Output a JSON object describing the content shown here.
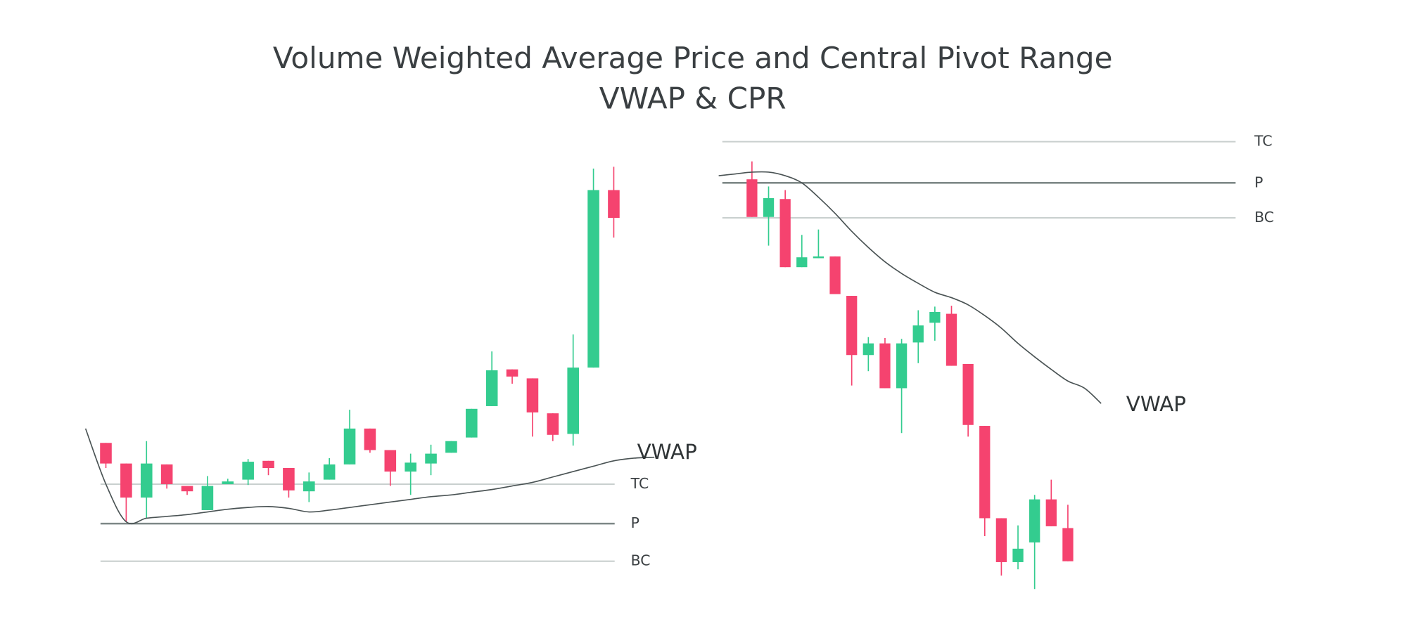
{
  "title": {
    "line1": "Volume Weighted Average Price and Central Pivot Range",
    "line2": "VWAP & CPR"
  },
  "colors": {
    "bullish": "#33cc8f",
    "bearish": "#f5436f",
    "pivot_line": "#7d8786",
    "range_line": "#c9cfce",
    "vwap_line": "#4a5354",
    "text": "#3a3f42"
  },
  "chart_data": [
    {
      "type": "candlestick",
      "title": "",
      "axes_visible": false,
      "grid": false,
      "levels": [
        {
          "label": "TC",
          "value": 160
        },
        {
          "label": "P",
          "value": 116
        },
        {
          "label": "BC",
          "value": 74
        }
      ],
      "vwap": {
        "label": "VWAP",
        "start_index": -1,
        "values": [
          222,
          160,
          118,
          122,
          124,
          126,
          129,
          132,
          134,
          135,
          133,
          129,
          131,
          134,
          137,
          140,
          143,
          146,
          148,
          151,
          154,
          158,
          162,
          168,
          174,
          180,
          186,
          189,
          190
        ]
      },
      "candles": [
        {
          "o": 206,
          "h": 206,
          "l": 178,
          "c": 183
        },
        {
          "o": 183,
          "h": 183,
          "l": 118,
          "c": 145
        },
        {
          "o": 145,
          "h": 208,
          "l": 122,
          "c": 183
        },
        {
          "o": 182,
          "h": 182,
          "l": 155,
          "c": 160
        },
        {
          "o": 158,
          "h": 158,
          "l": 148,
          "c": 152
        },
        {
          "o": 131,
          "h": 169,
          "l": 131,
          "c": 158
        },
        {
          "o": 160,
          "h": 166,
          "l": 160,
          "c": 163
        },
        {
          "o": 165,
          "h": 188,
          "l": 159,
          "c": 185
        },
        {
          "o": 186,
          "h": 186,
          "l": 170,
          "c": 178
        },
        {
          "o": 178,
          "h": 178,
          "l": 145,
          "c": 153
        },
        {
          "o": 152,
          "h": 173,
          "l": 140,
          "c": 163
        },
        {
          "o": 165,
          "h": 189,
          "l": 165,
          "c": 182
        },
        {
          "o": 182,
          "h": 243,
          "l": 182,
          "c": 222
        },
        {
          "o": 222,
          "h": 222,
          "l": 195,
          "c": 198
        },
        {
          "o": 198,
          "h": 198,
          "l": 158,
          "c": 174
        },
        {
          "o": 174,
          "h": 194,
          "l": 148,
          "c": 184
        },
        {
          "o": 183,
          "h": 204,
          "l": 170,
          "c": 194
        },
        {
          "o": 195,
          "h": 208,
          "l": 195,
          "c": 208
        },
        {
          "o": 212,
          "h": 244,
          "l": 212,
          "c": 244
        },
        {
          "o": 247,
          "h": 308,
          "l": 247,
          "c": 287
        },
        {
          "o": 288,
          "h": 288,
          "l": 272,
          "c": 280
        },
        {
          "o": 278,
          "h": 278,
          "l": 213,
          "c": 240
        },
        {
          "o": 239,
          "h": 239,
          "l": 208,
          "c": 215
        },
        {
          "o": 216,
          "h": 327,
          "l": 203,
          "c": 290
        },
        {
          "o": 290,
          "h": 512,
          "l": 290,
          "c": 488
        },
        {
          "o": 488,
          "h": 514,
          "l": 435,
          "c": 457
        }
      ]
    },
    {
      "type": "candlestick",
      "title": "",
      "axes_visible": false,
      "grid": false,
      "levels": [
        {
          "label": "TC",
          "value": 542
        },
        {
          "label": "P",
          "value": 496
        },
        {
          "label": "BC",
          "value": 457
        }
      ],
      "vwap": {
        "label": "VWAP",
        "start_index": -2,
        "values": [
          504,
          506,
          508,
          508,
          504,
          496,
          480,
          462,
          442,
          424,
          408,
          395,
          384,
          374,
          368,
          360,
          348,
          334,
          317,
          302,
          288,
          275,
          267,
          250
        ]
      },
      "candles": [
        {
          "o": 500,
          "h": 520,
          "l": 458,
          "c": 458
        },
        {
          "o": 458,
          "h": 492,
          "l": 426,
          "c": 479
        },
        {
          "o": 478,
          "h": 488,
          "l": 402,
          "c": 402
        },
        {
          "o": 402,
          "h": 438,
          "l": 402,
          "c": 413
        },
        {
          "o": 412,
          "h": 444,
          "l": 412,
          "c": 414
        },
        {
          "o": 414,
          "h": 414,
          "l": 372,
          "c": 372
        },
        {
          "o": 370,
          "h": 370,
          "l": 270,
          "c": 304
        },
        {
          "o": 304,
          "h": 324,
          "l": 286,
          "c": 317
        },
        {
          "o": 317,
          "h": 323,
          "l": 267,
          "c": 267
        },
        {
          "o": 267,
          "h": 322,
          "l": 217,
          "c": 317
        },
        {
          "o": 318,
          "h": 354,
          "l": 295,
          "c": 337
        },
        {
          "o": 340,
          "h": 358,
          "l": 320,
          "c": 352
        },
        {
          "o": 350,
          "h": 359,
          "l": 292,
          "c": 292
        },
        {
          "o": 294,
          "h": 294,
          "l": 213,
          "c": 226
        },
        {
          "o": 225,
          "h": 225,
          "l": 102,
          "c": 122
        },
        {
          "o": 122,
          "h": 122,
          "l": 58,
          "c": 73
        },
        {
          "o": 73,
          "h": 114,
          "l": 65,
          "c": 88
        },
        {
          "o": 95,
          "h": 148,
          "l": 43,
          "c": 143
        },
        {
          "o": 143,
          "h": 165,
          "l": 113,
          "c": 113
        },
        {
          "o": 111,
          "h": 137,
          "l": 74,
          "c": 74
        }
      ]
    }
  ]
}
